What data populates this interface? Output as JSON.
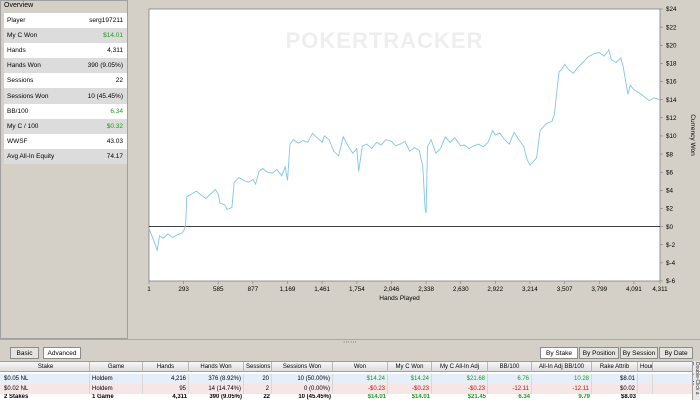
{
  "overview": {
    "title": "Overview",
    "rows": [
      {
        "label": "Player",
        "value": "serg197211",
        "color": ""
      },
      {
        "label": "My C Won",
        "value": "$14.01",
        "color": "green"
      },
      {
        "label": "Hands",
        "value": "4,311",
        "color": ""
      },
      {
        "label": "Hands Won",
        "value": "390 (9.05%)",
        "color": ""
      },
      {
        "label": "Sessions",
        "value": "22",
        "color": ""
      },
      {
        "label": "Sessions Won",
        "value": "10 (45.45%)",
        "color": ""
      },
      {
        "label": "BB/100",
        "value": "6.34",
        "color": "green"
      },
      {
        "label": "My C / 100",
        "value": "$0.32",
        "color": "green"
      },
      {
        "label": "WWSF",
        "value": "43.03",
        "color": ""
      },
      {
        "label": "Avg All-In Equity",
        "value": "74.17",
        "color": ""
      }
    ]
  },
  "chart_data": {
    "type": "line",
    "watermark": "POKERTRACKER",
    "xlabel": "Hands Played",
    "ylabel": "Currency Won",
    "x_ticks": [
      "1",
      "293",
      "585",
      "877",
      "1,169",
      "1,461",
      "1,754",
      "2,046",
      "2,338",
      "2,630",
      "2,922",
      "3,214",
      "3,507",
      "3,799",
      "4,091",
      "4,311"
    ],
    "y_ticks": [
      "$24",
      "$22",
      "$20",
      "$18",
      "$16",
      "$14",
      "$12",
      "$10",
      "$8",
      "$6",
      "$4",
      "$2",
      "$0",
      "$-2",
      "$-4",
      "$-6"
    ],
    "xlim": [
      1,
      4311
    ],
    "ylim": [
      -6,
      24
    ],
    "series": [
      {
        "color": "#7fc6ea",
        "points": [
          [
            1,
            -0.2
          ],
          [
            40,
            -1.5
          ],
          [
            70,
            -2.6
          ],
          [
            90,
            -1.0
          ],
          [
            120,
            -1.3
          ],
          [
            160,
            -0.8
          ],
          [
            200,
            -1.2
          ],
          [
            240,
            -0.9
          ],
          [
            280,
            -0.7
          ],
          [
            300,
            -0.3
          ],
          [
            310,
            0.2
          ],
          [
            320,
            3.3
          ],
          [
            360,
            3.6
          ],
          [
            400,
            3.9
          ],
          [
            440,
            3.5
          ],
          [
            480,
            3.1
          ],
          [
            520,
            3.6
          ],
          [
            560,
            4.1
          ],
          [
            585,
            3.6
          ],
          [
            600,
            2.6
          ],
          [
            640,
            2.4
          ],
          [
            660,
            1.9
          ],
          [
            700,
            2.1
          ],
          [
            720,
            4.9
          ],
          [
            760,
            5.4
          ],
          [
            800,
            5.1
          ],
          [
            840,
            4.9
          ],
          [
            877,
            5.2
          ],
          [
            900,
            4.7
          ],
          [
            930,
            6.1
          ],
          [
            960,
            6.4
          ],
          [
            1000,
            6.0
          ],
          [
            1040,
            5.9
          ],
          [
            1080,
            6.3
          ],
          [
            1120,
            5.6
          ],
          [
            1150,
            6.6
          ],
          [
            1169,
            5.1
          ],
          [
            1190,
            9.1
          ],
          [
            1220,
            9.6
          ],
          [
            1260,
            9.2
          ],
          [
            1300,
            9.5
          ],
          [
            1340,
            9.3
          ],
          [
            1380,
            10.3
          ],
          [
            1420,
            9.8
          ],
          [
            1461,
            9.3
          ],
          [
            1480,
            10.0
          ],
          [
            1520,
            9.6
          ],
          [
            1560,
            8.3
          ],
          [
            1600,
            7.8
          ],
          [
            1640,
            9.9
          ],
          [
            1680,
            8.9
          ],
          [
            1720,
            8.1
          ],
          [
            1754,
            8.6
          ],
          [
            1770,
            6.1
          ],
          [
            1800,
            8.9
          ],
          [
            1840,
            9.1
          ],
          [
            1880,
            8.6
          ],
          [
            1920,
            9.3
          ],
          [
            1960,
            9.0
          ],
          [
            2000,
            9.6
          ],
          [
            2046,
            9.4
          ],
          [
            2080,
            8.9
          ],
          [
            2120,
            9.1
          ],
          [
            2160,
            9.4
          ],
          [
            2200,
            8.3
          ],
          [
            2240,
            8.7
          ],
          [
            2280,
            8.4
          ],
          [
            2310,
            6.6
          ],
          [
            2330,
            2.0
          ],
          [
            2338,
            1.5
          ],
          [
            2350,
            8.8
          ],
          [
            2380,
            9.6
          ],
          [
            2420,
            8.1
          ],
          [
            2460,
            8.6
          ],
          [
            2500,
            9.9
          ],
          [
            2540,
            9.3
          ],
          [
            2580,
            9.8
          ],
          [
            2630,
            8.9
          ],
          [
            2660,
            9.0
          ],
          [
            2700,
            8.6
          ],
          [
            2740,
            8.9
          ],
          [
            2780,
            9.1
          ],
          [
            2820,
            8.8
          ],
          [
            2860,
            9.3
          ],
          [
            2900,
            10.6
          ],
          [
            2922,
            10.1
          ],
          [
            2960,
            10.3
          ],
          [
            3000,
            9.6
          ],
          [
            3040,
            9.1
          ],
          [
            3080,
            10.4
          ],
          [
            3120,
            9.6
          ],
          [
            3160,
            8.9
          ],
          [
            3190,
            7.4
          ],
          [
            3214,
            6.8
          ],
          [
            3240,
            7.1
          ],
          [
            3270,
            7.6
          ],
          [
            3300,
            10.6
          ],
          [
            3320,
            10.9
          ],
          [
            3340,
            11.2
          ],
          [
            3360,
            11.4
          ],
          [
            3400,
            11.6
          ],
          [
            3420,
            12.4
          ],
          [
            3440,
            14.8
          ],
          [
            3460,
            17.1
          ],
          [
            3480,
            17.3
          ],
          [
            3507,
            17.9
          ],
          [
            3540,
            17.3
          ],
          [
            3580,
            16.9
          ],
          [
            3620,
            17.6
          ],
          [
            3660,
            18.1
          ],
          [
            3700,
            18.7
          ],
          [
            3760,
            19.1
          ],
          [
            3799,
            19.2
          ],
          [
            3840,
            18.8
          ],
          [
            3880,
            19.5
          ],
          [
            3900,
            18.4
          ],
          [
            3940,
            18.1
          ],
          [
            3980,
            18.6
          ],
          [
            4000,
            17.7
          ],
          [
            4020,
            16.1
          ],
          [
            4040,
            14.6
          ],
          [
            4060,
            15.6
          ],
          [
            4091,
            15.1
          ],
          [
            4140,
            14.7
          ],
          [
            4180,
            14.3
          ],
          [
            4220,
            13.9
          ],
          [
            4260,
            14.2
          ],
          [
            4311,
            14.0
          ]
        ]
      }
    ]
  },
  "tabs_left": [
    {
      "label": "Basic",
      "active": false
    },
    {
      "label": "Advanced",
      "active": true
    }
  ],
  "tabs_right": [
    {
      "label": "By Stake",
      "active": true
    },
    {
      "label": "By Position",
      "active": false
    },
    {
      "label": "By Session",
      "active": false
    },
    {
      "label": "By Date",
      "active": false
    }
  ],
  "table": {
    "columns": [
      "Stake",
      "Game",
      "Hands",
      "Hands Won",
      "Sessions",
      "Sessions Won",
      "Won",
      "My C Won",
      "My C All-In Adj",
      "BB/100",
      "All-In Adj BB/100",
      "Rake Attrib",
      "Hour"
    ],
    "rows": [
      {
        "cells": [
          "$0.05 NL",
          "Holdem",
          "4,216",
          "376 (8.92%)",
          "20",
          "10 (50.00%)",
          "$14.24",
          "$14.24",
          "$21.68",
          "6.76",
          "10.28",
          "$8.01",
          ""
        ],
        "sign": "pos"
      },
      {
        "cells": [
          "$0.02 NL",
          "Holdem",
          "95",
          "14 (14.74%)",
          "2",
          "0 (0.00%)",
          "-$0.23",
          "-$0.23",
          "-$0.23",
          "-12.11",
          "-12.11",
          "$0.02",
          ""
        ],
        "sign": "neg"
      }
    ],
    "total": [
      "2 Stakes",
      "1 Game",
      "4,311",
      "390 (9.05%)",
      "22",
      "10 (45.45%)",
      "$14.01",
      "$14.01",
      "$21.45",
      "6.34",
      "9.79",
      "$8.03",
      ""
    ]
  },
  "side_note": "Double-Click a Row for Mo"
}
